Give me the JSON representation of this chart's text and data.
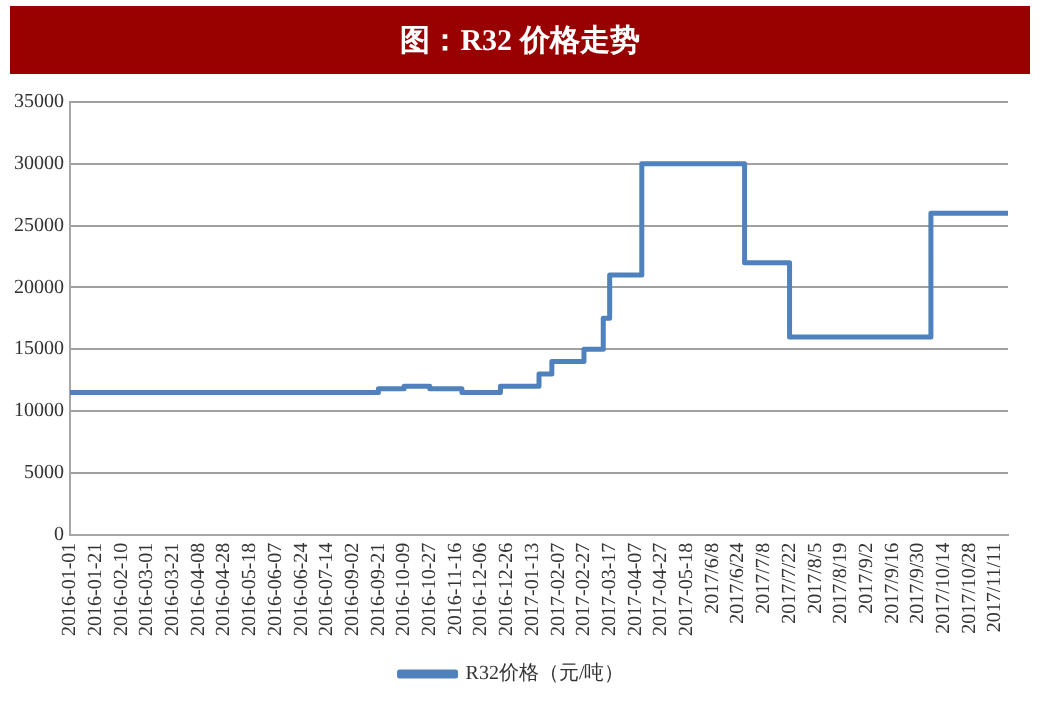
{
  "chart_data": {
    "type": "step",
    "title": "图：R32 价格走势",
    "categories": [
      "2016-01-01",
      null,
      null,
      null,
      "2016-01-21",
      null,
      null,
      null,
      "2016-02-10",
      null,
      null,
      null,
      "2016-03-01",
      null,
      null,
      null,
      "2016-03-21",
      null,
      null,
      null,
      "2016-04-08",
      null,
      null,
      null,
      "2016-04-28",
      null,
      null,
      null,
      "2016-05-18",
      null,
      null,
      null,
      "2016-06-07",
      null,
      null,
      null,
      "2016-06-24",
      null,
      null,
      null,
      "2016-07-14",
      null,
      null,
      null,
      "2016-09-02",
      null,
      null,
      null,
      "2016-09-21",
      null,
      null,
      null,
      "2016-10-09",
      null,
      null,
      null,
      "2016-10-27",
      null,
      null,
      null,
      "2016-11-16",
      null,
      null,
      null,
      "2016-12-06",
      null,
      null,
      null,
      "2016-12-26",
      null,
      null,
      null,
      "2017-01-13",
      null,
      null,
      null,
      "2017-02-07",
      null,
      null,
      null,
      "2017-02-27",
      null,
      null,
      null,
      "2017-03-17",
      null,
      null,
      null,
      "2017-04-07",
      null,
      null,
      null,
      "2017-04-27",
      null,
      null,
      null,
      "2017-05-18",
      null,
      null,
      null,
      "2017/6/8",
      null,
      null,
      null,
      "2017/6/24",
      null,
      null,
      null,
      "2017/7/8",
      null,
      null,
      null,
      "2017/7/22",
      null,
      null,
      null,
      "2017/8/5",
      null,
      null,
      null,
      "2017/8/19",
      null,
      null,
      null,
      "2017/9/2",
      null,
      null,
      null,
      "2017/9/16",
      null,
      null,
      null,
      "2017/9/30",
      null,
      null,
      null,
      "2017/10/14",
      null,
      null,
      null,
      "2017/10/28",
      null,
      null,
      null,
      "2017/11/11",
      null,
      null
    ],
    "series": [
      {
        "name": "R32价格（元/吨）",
        "color": "#4f81bd",
        "values": [
          11500,
          11500,
          11500,
          11500,
          11500,
          11500,
          11500,
          11500,
          11500,
          11500,
          11500,
          11500,
          11500,
          11500,
          11500,
          11500,
          11500,
          11500,
          11500,
          11500,
          11500,
          11500,
          11500,
          11500,
          11500,
          11500,
          11500,
          11500,
          11500,
          11500,
          11500,
          11500,
          11500,
          11500,
          11500,
          11500,
          11500,
          11500,
          11500,
          11500,
          11500,
          11500,
          11500,
          11500,
          11500,
          11500,
          11500,
          11500,
          11500,
          11800,
          11800,
          11800,
          11800,
          12000,
          12000,
          12000,
          12000,
          11800,
          11800,
          11800,
          11800,
          11800,
          11500,
          11500,
          11500,
          11500,
          11500,
          11500,
          12000,
          12000,
          12000,
          12000,
          12000,
          12000,
          13000,
          13000,
          14000,
          14000,
          14000,
          14000,
          14000,
          15000,
          15000,
          15000,
          17500,
          21000,
          21000,
          21000,
          21000,
          21000,
          30000,
          30000,
          30000,
          30000,
          30000,
          30000,
          30000,
          30000,
          30000,
          30000,
          30000,
          30000,
          30000,
          30000,
          30000,
          30000,
          22000,
          22000,
          22000,
          22000,
          22000,
          22000,
          22000,
          16000,
          16000,
          16000,
          16000,
          16000,
          16000,
          16000,
          16000,
          16000,
          16000,
          16000,
          16000,
          16000,
          16000,
          16000,
          16000,
          16000,
          16000,
          16000,
          16000,
          16000,
          16000,
          26000,
          26000,
          26000,
          26000,
          26000,
          26000,
          26000,
          26000,
          26000,
          26000,
          26000,
          26000
        ]
      }
    ],
    "ylim": [
      0,
      35000
    ],
    "yticks": [
      0,
      5000,
      10000,
      15000,
      20000,
      25000,
      30000,
      35000
    ],
    "grid": "y",
    "legend": "bottom",
    "line_style": "solid",
    "marker": "none"
  }
}
